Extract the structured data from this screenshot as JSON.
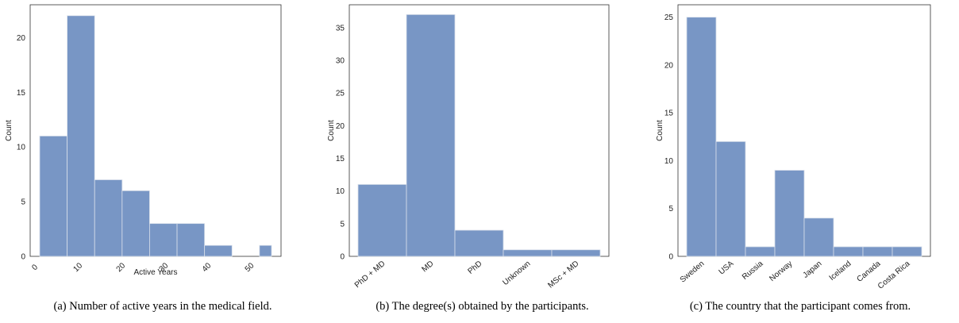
{
  "chart_data": [
    {
      "type": "bar",
      "subtype": "histogram",
      "bins": [
        [
          0,
          6.4
        ],
        [
          6.4,
          12.8
        ],
        [
          12.8,
          19.2
        ],
        [
          19.2,
          25.6
        ],
        [
          25.6,
          32
        ],
        [
          32,
          38.4
        ],
        [
          38.4,
          44.8
        ],
        [
          44.8,
          51.2
        ],
        [
          51.2,
          54
        ]
      ],
      "values": [
        11,
        22,
        7,
        6,
        3,
        3,
        1,
        0,
        1
      ],
      "xlabel": "Active Years",
      "ylabel": "Count",
      "xticks": [
        "0",
        "10",
        "20",
        "30",
        "40",
        "50"
      ],
      "yticks": [
        "0",
        "5",
        "10",
        "15",
        "20"
      ],
      "xlim": [
        0,
        54
      ],
      "ylim": [
        0,
        23
      ],
      "bar_color": "#7896c5",
      "caption": "(a) Number of active years in the medical field."
    },
    {
      "type": "bar",
      "categories": [
        "PhD + MD",
        "MD",
        "PhD",
        "Unknown",
        "MSc + MD"
      ],
      "values": [
        11,
        37,
        4,
        1,
        1
      ],
      "xlabel": "",
      "ylabel": "Count",
      "yticks": [
        "0",
        "5",
        "10",
        "15",
        "20",
        "25",
        "30",
        "35"
      ],
      "ylim": [
        0,
        38.5
      ],
      "bar_color": "#7896c5",
      "caption": "(b) The degree(s) obtained by the participants."
    },
    {
      "type": "bar",
      "categories": [
        "Sweden",
        "USA",
        "Russia",
        "Norway",
        "Japan",
        "Iceland",
        "Canada",
        "Costa Rica"
      ],
      "values": [
        25,
        12,
        1,
        9,
        4,
        1,
        1,
        1
      ],
      "xlabel": "",
      "ylabel": "Count",
      "yticks": [
        "0",
        "5",
        "10",
        "15",
        "20",
        "25"
      ],
      "ylim": [
        0,
        26.3
      ],
      "bar_color": "#7896c5",
      "caption": "(c) The country that the participant comes from."
    }
  ]
}
